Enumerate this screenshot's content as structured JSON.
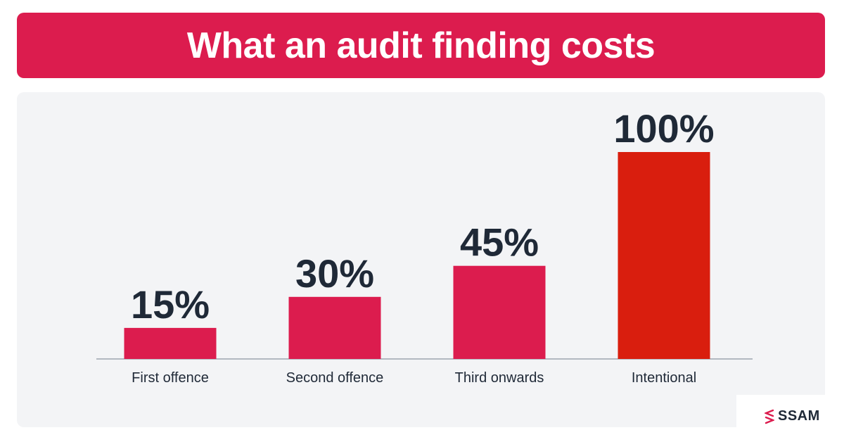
{
  "header": {
    "title": "What an audit finding costs"
  },
  "brand": {
    "name": "SSAM",
    "icon": "ssam-logo-icon",
    "icon_color": "#dc1c4e"
  },
  "colors": {
    "banner": "#dc1c4e",
    "bar": "#dc1c4e",
    "bar_highlight": "#d91e0e",
    "panel": "#f3f4f6",
    "value_label": "#1f2937",
    "category_label": "#1f2937",
    "baseline": "#9ca3af"
  },
  "chart_data": {
    "type": "bar",
    "title": "What an audit finding costs",
    "xlabel": "",
    "ylabel": "",
    "ylim": [
      0,
      100
    ],
    "grid": false,
    "categories": [
      "First offence",
      "Second offence",
      "Third onwards",
      "Intentional"
    ],
    "values": [
      15,
      30,
      45,
      100
    ],
    "value_labels": [
      "15%",
      "30%",
      "45%",
      "100%"
    ],
    "highlight_index": 3
  }
}
